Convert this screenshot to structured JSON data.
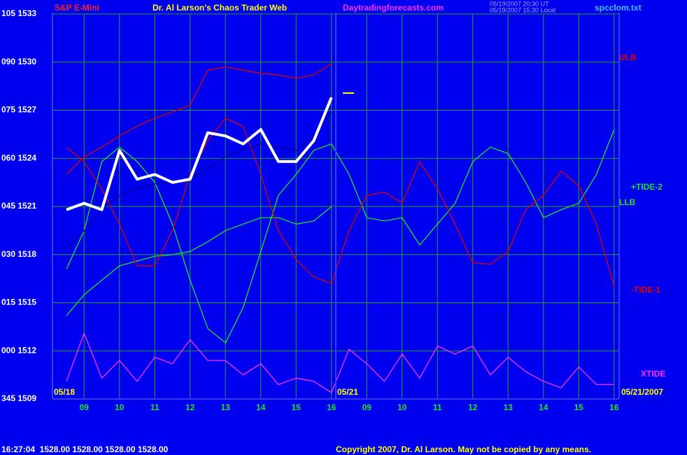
{
  "chart_data": {
    "type": "line",
    "title": "S&P E-Mini",
    "subtitle": "Dr. Al Larson's Chaos Trader Web",
    "site": "Daytradingforecasts.com",
    "timestamp_ut": "05/19/2007 20:30 UT",
    "timestamp_local": "05/19/2007 15:30 Local",
    "file": "spcclom.txt",
    "start_date": "05/18",
    "mid_date": "05/21",
    "end_date": "05/21/2007",
    "status": "16:27:04  1528.00 1528.00 1528.00 1528.00",
    "copyright": "Copyright 2007, Dr. Al Larson. May not be copied by any means.",
    "categories": [
      null,
      "09",
      null,
      "10",
      null,
      "11",
      null,
      "12",
      null,
      "13",
      null,
      "14",
      null,
      "15",
      null,
      "16",
      null,
      "09",
      null,
      "10",
      null,
      "11",
      null,
      "12",
      null,
      "13",
      null,
      "14",
      null,
      "15",
      null,
      "16"
    ],
    "ylim": [
      1509,
      1533
    ],
    "yticks": [
      {
        "value": 1533,
        "label": "105 1533"
      },
      {
        "value": 1530,
        "label": "090 1530"
      },
      {
        "value": 1527,
        "label": "075 1527"
      },
      {
        "value": 1524,
        "label": "060 1524"
      },
      {
        "value": 1521,
        "label": "045 1521"
      },
      {
        "value": 1518,
        "label": "030 1518"
      },
      {
        "value": 1515,
        "label": "015 1515"
      },
      {
        "value": 1512,
        "label": "000 1512"
      },
      {
        "value": 1509,
        "label": "345 1509"
      }
    ],
    "grid": true,
    "series": [
      {
        "name": "ULB",
        "color": "#e00000",
        "values": [
          1523.0,
          1524.1,
          1524.7,
          1525.4,
          1526.0,
          1526.5,
          1526.9,
          1527.3,
          1529.5,
          1529.7,
          1529.5,
          1529.3,
          1529.2,
          1529.0,
          1529.2,
          1529.9,
          null,
          null,
          null,
          null,
          null,
          null,
          null,
          null,
          null,
          null,
          null,
          null,
          null,
          null,
          null,
          null
        ]
      },
      {
        "name": "+TIDE-2",
        "color": "#22e022",
        "values": [
          1517.1,
          1519.5,
          1523.8,
          1524.7,
          1523.8,
          1522.5,
          1519.9,
          1516.4,
          1513.4,
          1512.5,
          1514.7,
          1518.2,
          1521.7,
          1523.0,
          1524.5,
          1524.9,
          1523.0,
          1520.3,
          1520.1,
          1520.3,
          1518.6,
          1519.9,
          1521.2,
          1523.8,
          1524.7,
          1524.3,
          1522.5,
          1520.3,
          1520.8,
          1521.2,
          1523.0,
          1525.8
        ]
      },
      {
        "name": "LLB",
        "color": "#22e022",
        "values": [
          1514.2,
          1515.5,
          1516.4,
          1517.3,
          1517.6,
          1517.9,
          1518.0,
          1518.2,
          1518.8,
          1519.5,
          1519.9,
          1520.3,
          1520.3,
          1519.9,
          1520.1,
          1521.0,
          null,
          null,
          null,
          null,
          null,
          null,
          null,
          null,
          null,
          null,
          null,
          null,
          null,
          null,
          null,
          null
        ]
      },
      {
        "name": "-TIDE-1",
        "color": "#e00000",
        "values": [
          1524.7,
          1523.8,
          1522.1,
          1519.9,
          1517.3,
          1517.3,
          1519.5,
          1523.0,
          1525.1,
          1526.5,
          1526.0,
          1523.0,
          1519.5,
          1517.7,
          1516.6,
          1516.2,
          1519.5,
          1521.7,
          1521.9,
          1521.2,
          1523.8,
          1522.1,
          1519.9,
          1517.5,
          1517.4,
          1518.2,
          1520.8,
          1521.7,
          1523.2,
          1522.3,
          1519.9,
          1516.0
        ]
      },
      {
        "name": "XTIDE",
        "color": "#ff30ff",
        "values": [
          1510.1,
          1513.1,
          1510.3,
          1511.4,
          1510.1,
          1511.6,
          1511.2,
          1512.7,
          1511.4,
          1511.4,
          1510.5,
          1511.2,
          1509.9,
          1510.3,
          1510.1,
          1509.4,
          1512.1,
          1511.2,
          1510.1,
          1511.8,
          1510.3,
          1512.3,
          1511.8,
          1512.3,
          1510.5,
          1511.6,
          1510.7,
          1510.1,
          1509.7,
          1511.0,
          1509.9,
          1509.9
        ]
      },
      {
        "color": "#000090",
        "values": [
          1518.4,
          1519.5,
          1520.8,
          1521.7,
          1522.1,
          1522.4,
          1522.6,
          1522.7,
          1523.4,
          1524.1,
          1524.5,
          1524.9,
          1524.7,
          1524.5,
          1525.4,
          1526.9,
          null,
          null,
          null,
          null,
          null,
          null,
          null,
          null,
          null,
          null,
          null,
          null,
          null,
          null,
          null,
          null
        ]
      },
      {
        "color": "#ffffff",
        "values": [
          1520.8,
          1521.2,
          1520.8,
          1524.5,
          1522.7,
          1523.0,
          1522.5,
          1522.7,
          1525.6,
          1525.4,
          1524.9,
          1525.8,
          1523.8,
          1523.8,
          1525.1,
          1527.8,
          null,
          null,
          null,
          null,
          null,
          null,
          null,
          null,
          null,
          null,
          null,
          null,
          null,
          null,
          null,
          null
        ]
      }
    ]
  }
}
